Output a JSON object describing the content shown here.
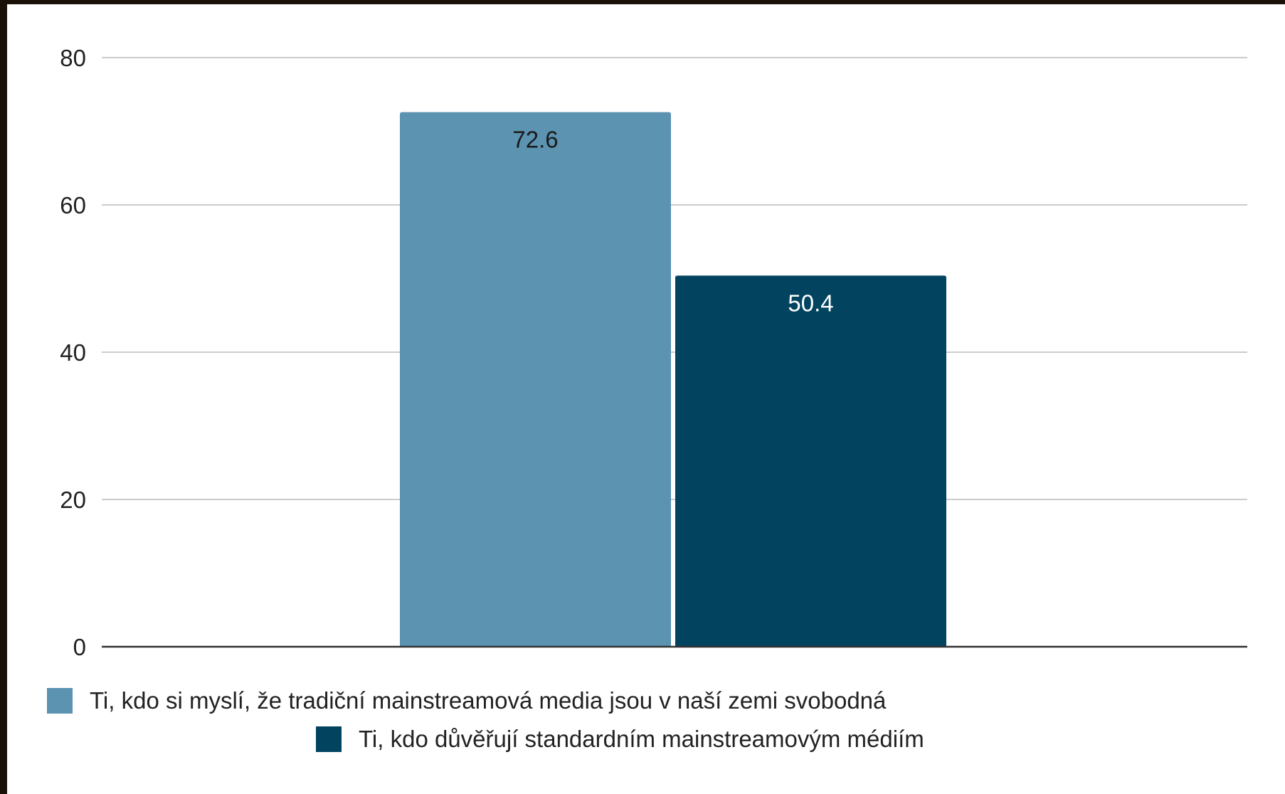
{
  "chart_data": {
    "type": "bar",
    "categories": [
      ""
    ],
    "series": [
      {
        "name": "Ti, kdo si myslí, že tradiční mainstreamová media jsou v naší zemi svobodná",
        "values": [
          72.6
        ],
        "color": "#5b93b1"
      },
      {
        "name": "Ti, kdo důvěřují standardním mainstreamovým médiím",
        "values": [
          50.4
        ],
        "color": "#02445f"
      }
    ],
    "data_labels": [
      "72.6",
      "50.4"
    ],
    "data_label_colors": [
      "#1a1a1a",
      "#ffffff"
    ],
    "ylim": [
      0,
      80
    ],
    "yticks": [
      0,
      20,
      40,
      60,
      80
    ],
    "ytick_labels": [
      "0",
      "20",
      "40",
      "60",
      "80"
    ],
    "grid": true,
    "legend_position": "bottom",
    "title": "",
    "xlabel": "",
    "ylabel": ""
  }
}
